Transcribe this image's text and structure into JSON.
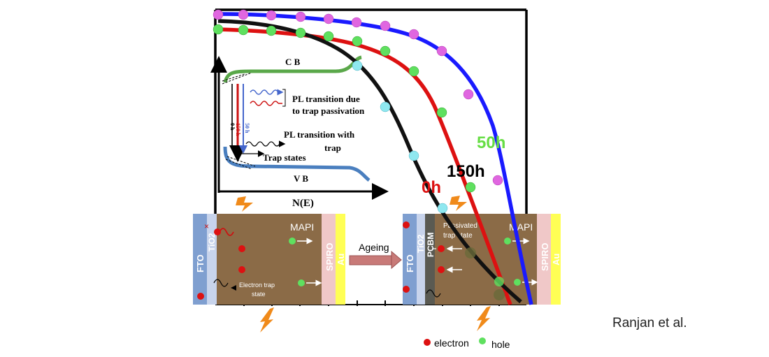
{
  "curve_labels": {
    "c50": "50h",
    "c150": "150h",
    "c0": "0h"
  },
  "inset": {
    "cb": "C B",
    "vb": "V B",
    "xaxis": "N(E)",
    "pl_trap_line1": "PL transition due",
    "pl_trap_line2": "to trap passivation",
    "pl_with_line1": "PL transition with",
    "pl_with_line2": "trap",
    "trap_states": "Trap states",
    "t0": "0 h",
    "t150": "150 h",
    "t50": "50 h"
  },
  "device_left": {
    "fto": "FTO",
    "tio2": "TiO2",
    "mapi": "MAPI",
    "spiro": "SPIRO",
    "au": "Au",
    "trap_line1": "Electron trap",
    "trap_line2": "state"
  },
  "arrow_label": "Ageing",
  "device_right": {
    "fto": "FTO",
    "tio2": "TiO2",
    "pcbm": "PCBM",
    "mapi": "MAPI",
    "spiro": "SPIRO",
    "au": "Au",
    "passivated_line1": "Passivated",
    "passivated_line2": "trap state"
  },
  "legend": {
    "electron": "electron",
    "hole": "hole"
  },
  "credit": "Ranjan et al.",
  "colors": {
    "c50": "#1a1aff",
    "c150": "#dd1111",
    "c0": "#111111",
    "marker_magenta": "#e066e0",
    "marker_green": "#5fe05f",
    "marker_cyan": "#8fe8f0",
    "mapi": "#8b6b47",
    "fto": "#7f9fd0",
    "spiro": "#f0c8c8",
    "au": "#ffff55",
    "cb_band": "#5aa84a",
    "vb_band": "#4a7fbf",
    "label_50h": "#66dd44"
  }
}
